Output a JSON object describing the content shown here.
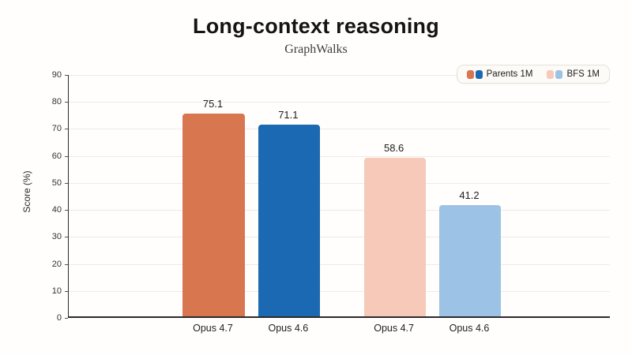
{
  "chart": {
    "title": "Long-context reasoning",
    "subtitle": "GraphWalks",
    "ylabel": "Score (%)"
  },
  "chart_data": {
    "type": "bar",
    "title": "Long-context reasoning",
    "subtitle": "GraphWalks",
    "xlabel": "",
    "ylabel": "Score (%)",
    "ylim": [
      0,
      90
    ],
    "yticks": [
      0,
      10,
      20,
      30,
      40,
      50,
      60,
      70,
      80,
      90
    ],
    "grid": true,
    "legend_position": "top-right",
    "categories": [
      "Opus 4.7",
      "Opus 4.6"
    ],
    "series": [
      {
        "name": "Parents 1M",
        "values": [
          75.1,
          71.1
        ],
        "data_labels": [
          "75.1",
          "71.1"
        ],
        "colors": [
          "#D7764F",
          "#1B69B2"
        ]
      },
      {
        "name": "BFS 1M",
        "values": [
          58.6,
          41.2
        ],
        "data_labels": [
          "58.6",
          "41.2"
        ],
        "colors": [
          "#F6C9B9",
          "#9CC2E5"
        ]
      }
    ],
    "legend": [
      {
        "label": "Parents 1M",
        "colors": [
          "#D7764F",
          "#1B69B2"
        ]
      },
      {
        "label": "BFS 1M",
        "colors": [
          "#F6C9B9",
          "#9CC2E5"
        ]
      }
    ],
    "axis_color": "#2b2b29",
    "gridline_color": "#ecebe8"
  }
}
